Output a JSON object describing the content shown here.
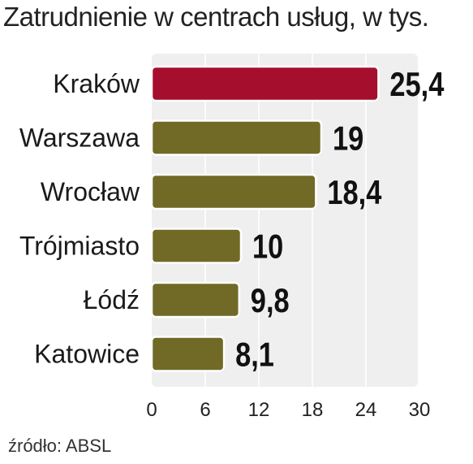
{
  "chart_data": {
    "type": "bar",
    "orientation": "horizontal",
    "title": "Zatrudnienie w centrach usług, w tys.",
    "categories": [
      "Kraków",
      "Warszawa",
      "Wrocław",
      "Trójmiasto",
      "Łódź",
      "Katowice"
    ],
    "values": [
      25.4,
      19,
      18.4,
      10,
      9.8,
      8.1
    ],
    "value_labels": [
      "25,4",
      "19",
      "18,4",
      "10",
      "9,8",
      "8,1"
    ],
    "xticks": [
      "0",
      "6",
      "12",
      "18",
      "24",
      "30"
    ],
    "xtick_values": [
      0,
      6,
      12,
      18,
      24,
      30
    ],
    "xlim": [
      0,
      30
    ],
    "xlabel": "",
    "ylabel": "",
    "grid": true,
    "colors": {
      "highlight": "#a50f2d",
      "bar": "#706a26",
      "plot_background": "#efefef",
      "grid": "#ffffff"
    },
    "highlight_index": 0
  },
  "source": "źródło: ABSL"
}
